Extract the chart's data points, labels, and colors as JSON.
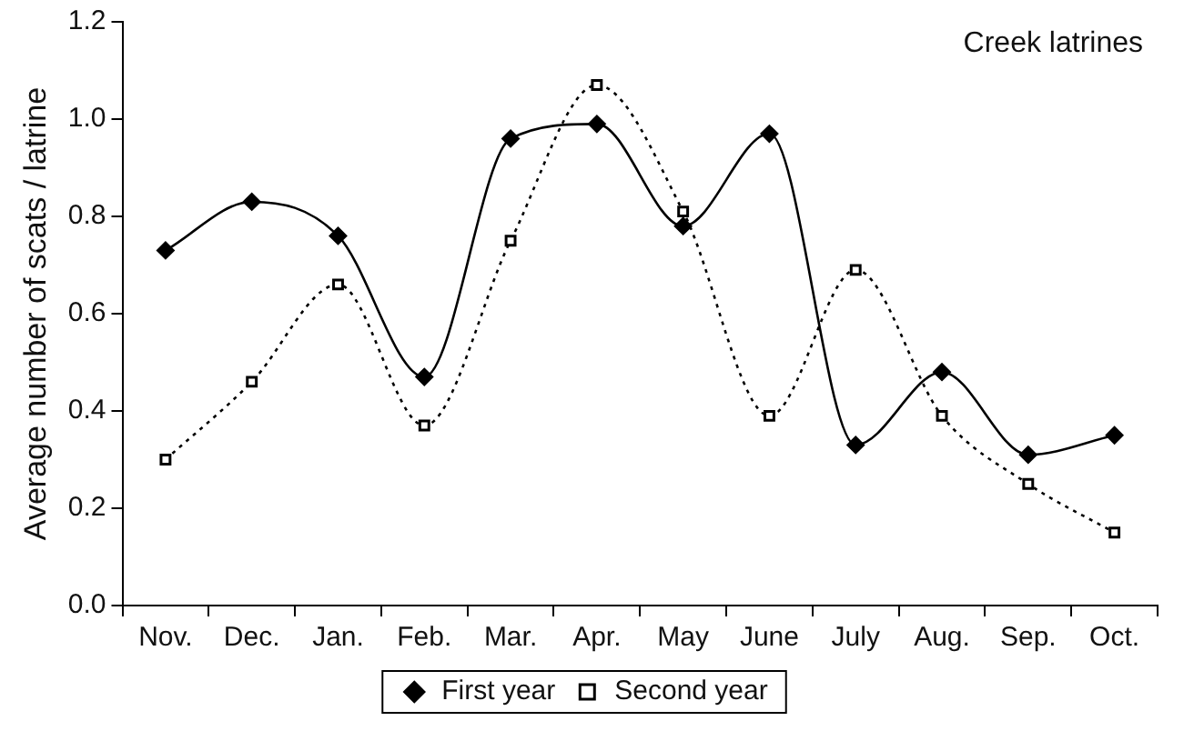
{
  "chart_data": {
    "type": "line",
    "title": "Creek latrines",
    "ylabel": "Average number of scats / latrine",
    "categories": [
      "Nov.",
      "Dec.",
      "Jan.",
      "Feb.",
      "Mar.",
      "Apr.",
      "May",
      "June",
      "July",
      "Aug.",
      "Sep.",
      "Oct."
    ],
    "series": [
      {
        "name": "First year",
        "color": "#000000",
        "marker": "diamond",
        "line_style": "solid",
        "values": [
          0.73,
          0.83,
          0.76,
          0.47,
          0.96,
          0.99,
          0.78,
          0.97,
          0.33,
          0.48,
          0.31,
          0.35
        ]
      },
      {
        "name": "Second year",
        "color": "#000000",
        "marker": "square",
        "line_style": "dotted",
        "values": [
          0.3,
          0.46,
          0.66,
          0.37,
          0.75,
          1.07,
          0.81,
          0.39,
          0.69,
          0.39,
          0.25,
          0.15
        ]
      }
    ],
    "ylim": [
      0,
      1.2
    ],
    "yticks": [
      {
        "value": 0,
        "label": "0.0"
      },
      {
        "value": 0.2,
        "label": "0.2"
      },
      {
        "value": 0.4,
        "label": "0.4"
      },
      {
        "value": 0.6,
        "label": "0.6"
      },
      {
        "value": 0.8,
        "label": "0.8"
      },
      {
        "value": 1,
        "label": "1.0"
      },
      {
        "value": 1.2,
        "label": "1.2"
      }
    ],
    "grid": false,
    "legend": "bottom"
  }
}
